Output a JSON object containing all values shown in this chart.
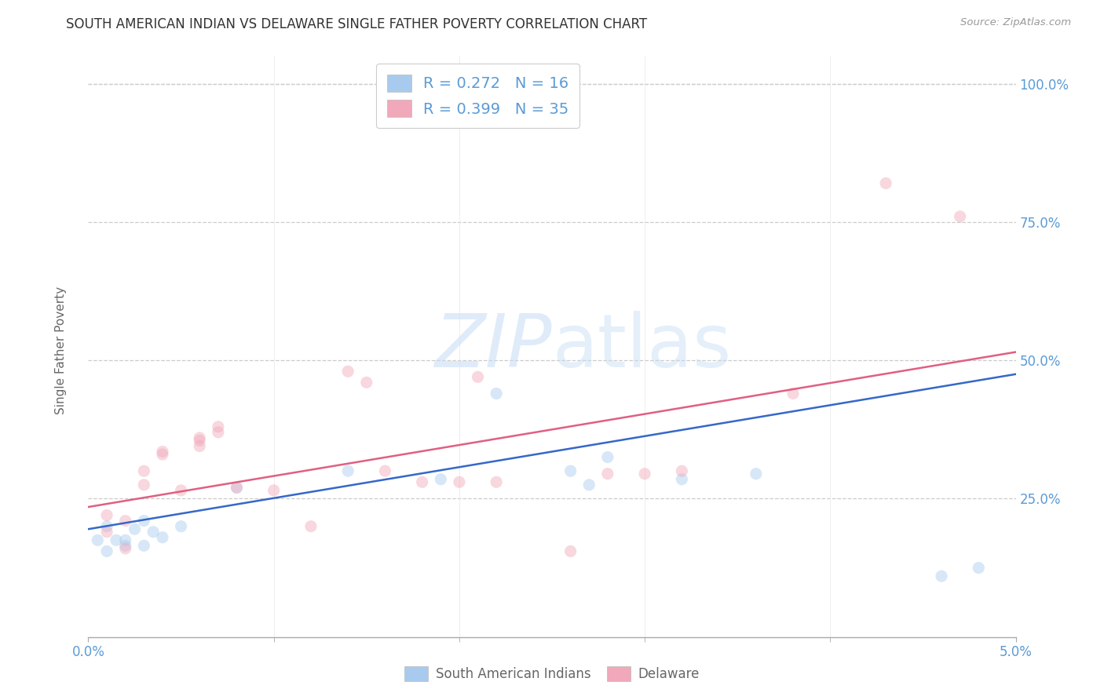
{
  "title": "SOUTH AMERICAN INDIAN VS DELAWARE SINGLE FATHER POVERTY CORRELATION CHART",
  "source": "Source: ZipAtlas.com",
  "ylabel": "Single Father Poverty",
  "xlim": [
    0.0,
    0.05
  ],
  "ylim": [
    0.0,
    1.05
  ],
  "blue_R": "0.272",
  "blue_N": "16",
  "pink_R": "0.399",
  "pink_N": "35",
  "legend_label_blue": "South American Indians",
  "legend_label_pink": "Delaware",
  "blue_dot_color": "#A8CAEE",
  "pink_dot_color": "#F0A8BA",
  "blue_line_color": "#3568C8",
  "pink_line_color": "#E06080",
  "watermark_1": "ZIP",
  "watermark_2": "atlas",
  "blue_scatter_x": [
    0.0005,
    0.001,
    0.001,
    0.0015,
    0.002,
    0.002,
    0.0025,
    0.003,
    0.003,
    0.0035,
    0.004,
    0.005,
    0.008,
    0.014,
    0.019,
    0.022,
    0.026,
    0.027,
    0.028,
    0.032,
    0.036,
    0.046,
    0.048
  ],
  "blue_scatter_y": [
    0.175,
    0.2,
    0.155,
    0.175,
    0.175,
    0.165,
    0.195,
    0.21,
    0.165,
    0.19,
    0.18,
    0.2,
    0.27,
    0.3,
    0.285,
    0.44,
    0.3,
    0.275,
    0.325,
    0.285,
    0.295,
    0.11,
    0.125
  ],
  "pink_scatter_x": [
    0.001,
    0.001,
    0.002,
    0.002,
    0.003,
    0.003,
    0.004,
    0.004,
    0.005,
    0.006,
    0.006,
    0.006,
    0.007,
    0.007,
    0.008,
    0.01,
    0.012,
    0.014,
    0.015,
    0.016,
    0.018,
    0.02,
    0.021,
    0.022,
    0.026,
    0.028,
    0.03,
    0.032,
    0.038,
    0.043,
    0.047
  ],
  "pink_scatter_y": [
    0.22,
    0.19,
    0.21,
    0.16,
    0.3,
    0.275,
    0.335,
    0.33,
    0.265,
    0.355,
    0.36,
    0.345,
    0.38,
    0.37,
    0.27,
    0.265,
    0.2,
    0.48,
    0.46,
    0.3,
    0.28,
    0.28,
    0.47,
    0.28,
    0.155,
    0.295,
    0.295,
    0.3,
    0.44,
    0.82,
    0.76
  ],
  "blue_line_x": [
    0.0,
    0.05
  ],
  "blue_line_y": [
    0.195,
    0.475
  ],
  "pink_line_x": [
    0.0,
    0.05
  ],
  "pink_line_y": [
    0.235,
    0.515
  ],
  "ytick_positions": [
    0.25,
    0.5,
    0.75,
    1.0
  ],
  "ytick_labels": [
    "25.0%",
    "50.0%",
    "75.0%",
    "100.0%"
  ],
  "xtick_minor_positions": [
    0.01,
    0.02,
    0.03,
    0.04
  ],
  "grid_color": "#CCCCCC",
  "bg_color": "#FFFFFF",
  "title_color": "#333333",
  "axis_tick_color": "#5B9BD5",
  "legend_text_color": "#666666",
  "marker_size": 120,
  "marker_alpha": 0.45,
  "line_width": 1.8
}
